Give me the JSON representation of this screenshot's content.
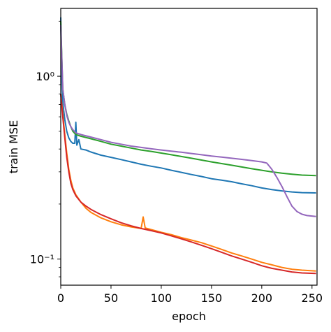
{
  "chart_data": {
    "type": "line",
    "title": "",
    "xlabel": "epoch",
    "ylabel": "train MSE",
    "xlim": [
      0,
      255
    ],
    "ylim": [
      0.072,
      2.35
    ],
    "yscale": "log",
    "grid": false,
    "legend": "none",
    "x_ticks": [
      0,
      50,
      100,
      150,
      200,
      250
    ],
    "x_tick_labels": [
      "0",
      "50",
      "100",
      "150",
      "200",
      "250"
    ],
    "y_ticks": [
      1.0,
      0.1
    ],
    "y_tick_labels": [
      "10⁰",
      "10⁻¹"
    ],
    "series": [
      {
        "color": "#1f77b4",
        "x": [
          0,
          1,
          2,
          4,
          6,
          8,
          10,
          12,
          14,
          15,
          16,
          18,
          20,
          25,
          30,
          40,
          50,
          60,
          70,
          80,
          90,
          100,
          110,
          120,
          130,
          140,
          150,
          160,
          170,
          180,
          190,
          200,
          210,
          220,
          230,
          240,
          254
        ],
        "y": [
          2.1,
          0.95,
          0.72,
          0.58,
          0.5,
          0.46,
          0.44,
          0.43,
          0.43,
          0.56,
          0.42,
          0.45,
          0.4,
          0.395,
          0.385,
          0.37,
          0.36,
          0.35,
          0.34,
          0.33,
          0.322,
          0.315,
          0.306,
          0.298,
          0.29,
          0.283,
          0.275,
          0.27,
          0.265,
          0.258,
          0.252,
          0.245,
          0.24,
          0.236,
          0.233,
          0.231,
          0.23
        ]
      },
      {
        "color": "#ff7f0e",
        "x": [
          0,
          2,
          4,
          6,
          8,
          10,
          12,
          15,
          20,
          25,
          30,
          40,
          50,
          60,
          70,
          80,
          82,
          84,
          90,
          100,
          110,
          120,
          130,
          140,
          150,
          160,
          170,
          180,
          190,
          200,
          210,
          220,
          230,
          240,
          254
        ],
        "y": [
          0.8,
          0.62,
          0.48,
          0.38,
          0.31,
          0.27,
          0.245,
          0.225,
          0.205,
          0.19,
          0.18,
          0.168,
          0.16,
          0.154,
          0.15,
          0.147,
          0.17,
          0.148,
          0.145,
          0.14,
          0.136,
          0.131,
          0.127,
          0.123,
          0.118,
          0.113,
          0.108,
          0.104,
          0.1,
          0.096,
          0.093,
          0.09,
          0.088,
          0.087,
          0.086
        ]
      },
      {
        "color": "#2ca02c",
        "x": [
          0,
          2,
          4,
          6,
          8,
          10,
          12,
          15,
          20,
          30,
          40,
          50,
          60,
          70,
          80,
          90,
          100,
          110,
          120,
          130,
          140,
          150,
          160,
          170,
          180,
          190,
          200,
          210,
          220,
          230,
          240,
          254
        ],
        "y": [
          2.0,
          0.85,
          0.7,
          0.62,
          0.57,
          0.53,
          0.5,
          0.48,
          0.47,
          0.455,
          0.44,
          0.425,
          0.415,
          0.405,
          0.395,
          0.388,
          0.38,
          0.372,
          0.364,
          0.356,
          0.348,
          0.34,
          0.333,
          0.326,
          0.319,
          0.312,
          0.306,
          0.3,
          0.295,
          0.291,
          0.288,
          0.286
        ]
      },
      {
        "color": "#d62728",
        "x": [
          0,
          2,
          4,
          6,
          8,
          10,
          12,
          15,
          20,
          25,
          30,
          40,
          50,
          60,
          70,
          80,
          90,
          100,
          110,
          120,
          130,
          140,
          150,
          160,
          170,
          180,
          190,
          200,
          210,
          220,
          230,
          240,
          254
        ],
        "y": [
          0.8,
          0.6,
          0.46,
          0.36,
          0.3,
          0.26,
          0.24,
          0.222,
          0.205,
          0.195,
          0.187,
          0.175,
          0.166,
          0.158,
          0.152,
          0.147,
          0.143,
          0.139,
          0.134,
          0.129,
          0.124,
          0.119,
          0.114,
          0.109,
          0.104,
          0.1,
          0.096,
          0.092,
          0.089,
          0.087,
          0.085,
          0.084,
          0.0835
        ]
      },
      {
        "color": "#9467bd",
        "x": [
          0,
          2,
          4,
          6,
          8,
          10,
          12,
          15,
          20,
          30,
          40,
          50,
          60,
          70,
          80,
          90,
          100,
          110,
          120,
          130,
          140,
          150,
          160,
          170,
          180,
          190,
          200,
          205,
          210,
          215,
          220,
          225,
          230,
          235,
          240,
          245,
          254
        ],
        "y": [
          1.9,
          0.85,
          0.7,
          0.61,
          0.56,
          0.53,
          0.51,
          0.49,
          0.48,
          0.465,
          0.45,
          0.435,
          0.425,
          0.415,
          0.408,
          0.401,
          0.395,
          0.389,
          0.384,
          0.378,
          0.372,
          0.366,
          0.361,
          0.356,
          0.351,
          0.346,
          0.34,
          0.335,
          0.31,
          0.28,
          0.25,
          0.22,
          0.195,
          0.182,
          0.176,
          0.173,
          0.171
        ]
      }
    ]
  }
}
